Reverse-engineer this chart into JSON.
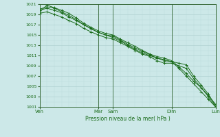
{
  "background_color": "#cce8e8",
  "grid_major_color": "#aacccc",
  "grid_minor_color": "#bbdddd",
  "line_color": "#1a6b1a",
  "spine_color": "#336633",
  "xlabel": "Pression niveau de la mer( hPa )",
  "ylim": [
    1001,
    1021
  ],
  "yticks": [
    1001,
    1003,
    1005,
    1007,
    1009,
    1011,
    1013,
    1015,
    1017,
    1019,
    1021
  ],
  "xtick_labels": [
    "Ven",
    "Mar",
    "Sam",
    "Dim",
    "Lun"
  ],
  "xtick_positions": [
    0,
    24,
    30,
    54,
    72
  ],
  "vlines": [
    0,
    24,
    30,
    54,
    72
  ],
  "xlim": [
    0,
    72
  ],
  "lines": [
    {
      "x": [
        0,
        3,
        6,
        9,
        12,
        15,
        18,
        21,
        24,
        27,
        30,
        33,
        36,
        39,
        42,
        45,
        48,
        51,
        54,
        57,
        60,
        63,
        66,
        69,
        72
      ],
      "y": [
        1020.0,
        1020.5,
        1020.2,
        1019.5,
        1018.8,
        1018.0,
        1017.0,
        1016.2,
        1015.5,
        1015.0,
        1014.5,
        1013.8,
        1013.0,
        1012.2,
        1011.5,
        1011.0,
        1010.5,
        1010.2,
        1009.8,
        1008.5,
        1007.0,
        1005.5,
        1004.0,
        1002.5,
        1001.0
      ]
    },
    {
      "x": [
        0,
        3,
        6,
        9,
        12,
        15,
        18,
        21,
        24,
        27,
        30,
        33,
        36,
        39,
        42,
        45,
        48,
        51,
        54,
        57,
        60,
        63,
        66,
        69,
        72
      ],
      "y": [
        1019.5,
        1020.8,
        1020.3,
        1019.8,
        1019.2,
        1018.3,
        1017.3,
        1016.5,
        1015.8,
        1015.3,
        1015.0,
        1014.2,
        1013.5,
        1012.8,
        1012.0,
        1011.3,
        1010.8,
        1010.5,
        1010.0,
        1008.8,
        1007.5,
        1006.0,
        1004.8,
        1003.2,
        1001.5
      ]
    },
    {
      "x": [
        0,
        3,
        6,
        9,
        12,
        15,
        18,
        21,
        24,
        27,
        30,
        33,
        36,
        39,
        42,
        45,
        48,
        51,
        54,
        57,
        60,
        63,
        66,
        69,
        72
      ],
      "y": [
        1019.8,
        1020.2,
        1019.8,
        1019.3,
        1018.5,
        1017.8,
        1017.0,
        1016.3,
        1015.5,
        1015.0,
        1014.8,
        1014.0,
        1013.2,
        1012.5,
        1011.8,
        1011.2,
        1010.5,
        1010.0,
        1009.8,
        1009.5,
        1009.2,
        1007.0,
        1005.3,
        1003.5,
        1001.2
      ]
    },
    {
      "x": [
        0,
        3,
        6,
        9,
        12,
        15,
        18,
        21,
        24,
        27,
        30,
        33,
        36,
        39,
        42,
        45,
        48,
        51,
        54,
        57,
        60,
        63,
        66,
        69,
        72
      ],
      "y": [
        1019.2,
        1019.5,
        1019.0,
        1018.5,
        1017.8,
        1017.2,
        1016.3,
        1015.6,
        1015.0,
        1014.5,
        1014.2,
        1013.5,
        1012.8,
        1012.0,
        1011.3,
        1010.8,
        1010.0,
        1009.5,
        1009.5,
        1009.0,
        1008.5,
        1006.5,
        1004.8,
        1003.0,
        1001.0
      ]
    }
  ]
}
